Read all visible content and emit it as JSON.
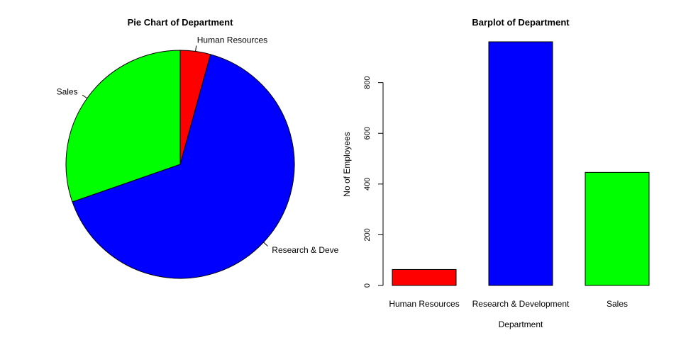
{
  "chart_data": [
    {
      "type": "pie",
      "title": "Pie Chart of Department",
      "categories": [
        "Human Resources",
        "Research & Development",
        "Sales"
      ],
      "visible_labels": [
        "Human Resources",
        "Research & Deve",
        "Sales"
      ],
      "values": [
        63,
        961,
        446
      ],
      "colors": [
        "#ff0000",
        "#0000ff",
        "#00ff00"
      ],
      "start_angle_deg": 90,
      "direction": "clockwise"
    },
    {
      "type": "bar",
      "title": "Barplot of Department",
      "categories": [
        "Human Resources",
        "Research & Development",
        "Sales"
      ],
      "values": [
        63,
        961,
        446
      ],
      "colors": [
        "#ff0000",
        "#0000ff",
        "#00ff00"
      ],
      "xlabel": "Department",
      "ylabel": "No of Employees",
      "yticks": [
        0,
        200,
        400,
        600,
        800
      ],
      "ylim": [
        0,
        961
      ],
      "grid": false
    }
  ]
}
